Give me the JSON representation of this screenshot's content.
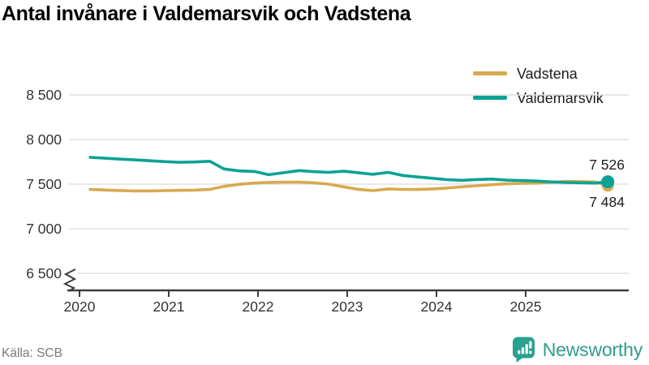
{
  "title": "Antal invånare i Valdemarsvik och Vadstena",
  "source": {
    "label": "Källa: SCB"
  },
  "branding": {
    "name": "Newsworthy",
    "icon": "bar-chart-speech-bubble-icon",
    "text_color": "#2f9c8b",
    "icon_bg_color": "#2aa18e"
  },
  "colors": {
    "grid": "#e0e0e0",
    "axis": "#3c3c3c",
    "tick_text": "#333333",
    "end_label_text": "#1d1d1d"
  },
  "chart_data": {
    "type": "line",
    "title": "Antal invånare i Valdemarsvik och Vadstena",
    "xlabel": "",
    "ylabel": "",
    "grid": "horizontal",
    "legend_position": "top-right",
    "axis_break_bottom_left": true,
    "x_unit": "decimal-year",
    "x_ticks": [
      2020,
      2021,
      2022,
      2023,
      2024,
      2025
    ],
    "x_tick_labels": [
      "2020",
      "2021",
      "2022",
      "2023",
      "2024",
      "2025"
    ],
    "y_ticks": [
      {
        "value": 8500,
        "label": "8 500"
      },
      {
        "value": 8000,
        "label": "8 000"
      },
      {
        "value": 7500,
        "label": "7 500"
      },
      {
        "value": 7000,
        "label": "7 000"
      },
      {
        "value": 6500,
        "label": "6 500"
      }
    ],
    "ylim": [
      6500,
      8500
    ],
    "xlim": [
      2020.0,
      2026.15
    ],
    "x": [
      2020.12,
      2020.29,
      2020.46,
      2020.62,
      2020.79,
      2020.96,
      2021.12,
      2021.29,
      2021.46,
      2021.62,
      2021.79,
      2021.96,
      2022.12,
      2022.29,
      2022.46,
      2022.62,
      2022.79,
      2022.96,
      2023.12,
      2023.29,
      2023.46,
      2023.62,
      2023.79,
      2023.96,
      2024.12,
      2024.29,
      2024.46,
      2024.62,
      2024.79,
      2024.96,
      2025.12,
      2025.29,
      2025.46,
      2025.62,
      2025.79,
      2025.92
    ],
    "series": [
      {
        "name": "Vadstena",
        "color": "#d8a94f",
        "end_value": 7484,
        "end_label": "7 484",
        "values": [
          7440,
          7434,
          7428,
          7424,
          7424,
          7427,
          7430,
          7433,
          7441,
          7475,
          7498,
          7512,
          7519,
          7522,
          7522,
          7515,
          7500,
          7470,
          7442,
          7427,
          7446,
          7441,
          7440,
          7446,
          7456,
          7470,
          7482,
          7494,
          7504,
          7509,
          7512,
          7521,
          7530,
          7528,
          7524,
          7484
        ]
      },
      {
        "name": "Valdemarsvik",
        "color": "#0ba294",
        "end_value": 7526,
        "end_label": "7 526",
        "values": [
          7800,
          7790,
          7780,
          7772,
          7762,
          7752,
          7745,
          7748,
          7756,
          7670,
          7648,
          7642,
          7605,
          7628,
          7652,
          7640,
          7632,
          7645,
          7628,
          7610,
          7632,
          7597,
          7580,
          7565,
          7550,
          7543,
          7552,
          7556,
          7545,
          7540,
          7535,
          7525,
          7518,
          7515,
          7512,
          7526
        ]
      }
    ]
  }
}
